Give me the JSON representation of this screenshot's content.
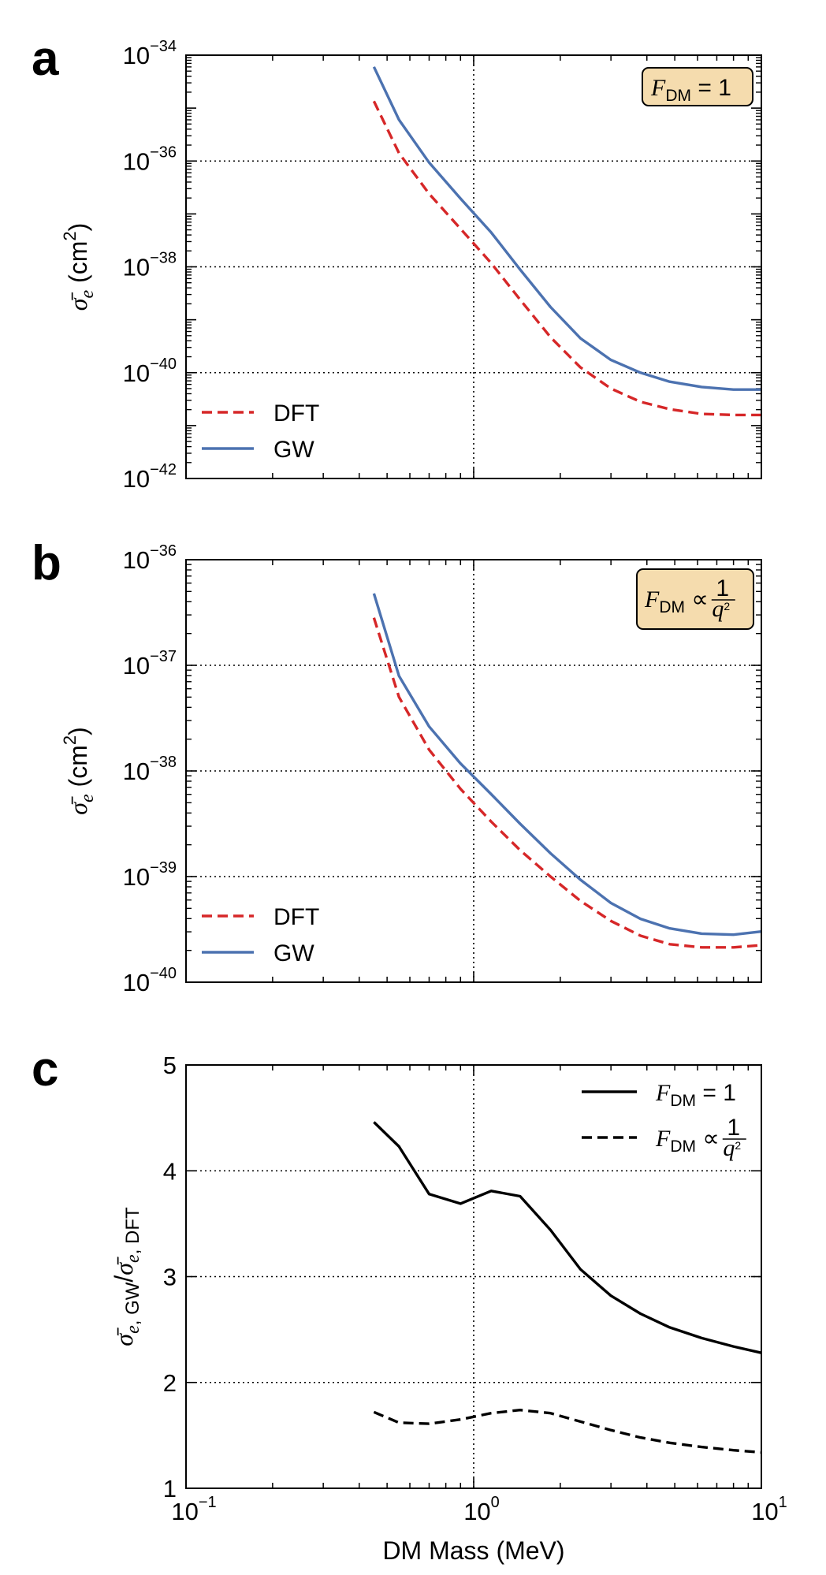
{
  "chart_data": [
    {
      "panel": "a",
      "type": "line",
      "xscale": "log",
      "yscale": "log",
      "xlim": [
        0.1,
        10
      ],
      "ylim_exp": [
        -42,
        -34
      ],
      "yticks_exp": [
        -42,
        -40,
        -38,
        -36,
        -34
      ],
      "ylabel": "σ̄e (cm2)",
      "grid": true,
      "annotation": "FDM = 1",
      "legend": {
        "position": "lower-left",
        "entries": [
          "DFT",
          "GW"
        ]
      },
      "series": [
        {
          "name": "DFT",
          "style": "dashed",
          "color": "#d62728",
          "x": [
            0.45,
            0.55,
            0.7,
            0.9,
            1.15,
            1.45,
            1.85,
            2.35,
            3.0,
            3.8,
            4.8,
            6.2,
            8.0,
            10.0
          ],
          "log10_y": [
            -34.87,
            -35.85,
            -36.62,
            -37.28,
            -37.93,
            -38.62,
            -39.33,
            -39.9,
            -40.3,
            -40.55,
            -40.69,
            -40.78,
            -40.8,
            -40.8
          ]
        },
        {
          "name": "GW",
          "style": "solid",
          "color": "#4c72b0",
          "x": [
            0.45,
            0.55,
            0.7,
            0.9,
            1.15,
            1.45,
            1.85,
            2.35,
            3.0,
            3.8,
            4.8,
            6.2,
            8.0,
            10.0
          ],
          "log10_y": [
            -34.22,
            -35.22,
            -36.03,
            -36.71,
            -37.35,
            -38.05,
            -38.76,
            -39.35,
            -39.76,
            -40.0,
            -40.17,
            -40.27,
            -40.32,
            -40.32
          ]
        }
      ]
    },
    {
      "panel": "b",
      "type": "line",
      "xscale": "log",
      "yscale": "log",
      "xlim": [
        0.1,
        10
      ],
      "ylim_exp": [
        -40,
        -36
      ],
      "yticks_exp": [
        -40,
        -39,
        -38,
        -37,
        -36
      ],
      "ylabel": "σ̄e (cm2)",
      "grid": true,
      "annotation": "FDM ∝ 1/q2",
      "legend": {
        "position": "lower-left",
        "entries": [
          "DFT",
          "GW"
        ]
      },
      "series": [
        {
          "name": "DFT",
          "style": "dashed",
          "color": "#d62728",
          "x": [
            0.45,
            0.55,
            0.7,
            0.9,
            1.15,
            1.45,
            1.85,
            2.35,
            3.0,
            3.8,
            4.8,
            6.2,
            8.0,
            10.0
          ],
          "log10_y": [
            -36.55,
            -37.3,
            -37.8,
            -38.17,
            -38.48,
            -38.75,
            -39.0,
            -39.23,
            -39.42,
            -39.56,
            -39.64,
            -39.67,
            -39.67,
            -39.65
          ]
        },
        {
          "name": "GW",
          "style": "solid",
          "color": "#4c72b0",
          "x": [
            0.45,
            0.55,
            0.7,
            0.9,
            1.15,
            1.45,
            1.85,
            2.35,
            3.0,
            3.8,
            4.8,
            6.2,
            8.0,
            10.0
          ],
          "log10_y": [
            -36.32,
            -37.1,
            -37.58,
            -37.93,
            -38.22,
            -38.5,
            -38.78,
            -39.03,
            -39.25,
            -39.4,
            -39.49,
            -39.54,
            -39.55,
            -39.52
          ]
        }
      ]
    },
    {
      "panel": "c",
      "type": "line",
      "xscale": "log",
      "yscale": "linear",
      "xlim": [
        0.1,
        10
      ],
      "ylim": [
        1,
        5
      ],
      "yticks": [
        1,
        2,
        3,
        4,
        5
      ],
      "xlabel": "DM Mass (MeV)",
      "ylabel": "σ̄e, GW/σ̄e, DFT",
      "grid": true,
      "legend": {
        "position": "top-right",
        "entries": [
          "FDM = 1",
          "FDM ∝ 1/q2"
        ]
      },
      "series": [
        {
          "name": "FDM = 1",
          "style": "solid",
          "color": "#000000",
          "x": [
            0.45,
            0.55,
            0.7,
            0.9,
            1.15,
            1.45,
            1.85,
            2.35,
            3.0,
            3.8,
            4.8,
            6.2,
            8.0,
            10.0
          ],
          "y": [
            4.46,
            4.23,
            3.78,
            3.69,
            3.81,
            3.76,
            3.44,
            3.07,
            2.82,
            2.65,
            2.52,
            2.42,
            2.34,
            2.28
          ]
        },
        {
          "name": "FDM ∝ 1/q2",
          "style": "dashed",
          "color": "#000000",
          "x": [
            0.45,
            0.55,
            0.7,
            0.9,
            1.15,
            1.45,
            1.85,
            2.35,
            3.0,
            3.8,
            4.8,
            6.2,
            8.0,
            10.0
          ],
          "y": [
            1.72,
            1.62,
            1.61,
            1.65,
            1.71,
            1.74,
            1.71,
            1.63,
            1.55,
            1.48,
            1.43,
            1.39,
            1.36,
            1.34
          ]
        }
      ]
    }
  ],
  "panel_letters": [
    "a",
    "b",
    "c"
  ],
  "xtick_labels": {
    "base": "10",
    "exps": [
      "−1",
      "0",
      "1"
    ]
  },
  "ytick_labels": {
    "a": [
      "−42",
      "−40",
      "−38",
      "−36",
      "−34"
    ],
    "b": [
      "−40",
      "−39",
      "−38",
      "−37",
      "−36"
    ],
    "c": [
      "1",
      "2",
      "3",
      "4",
      "5"
    ]
  }
}
